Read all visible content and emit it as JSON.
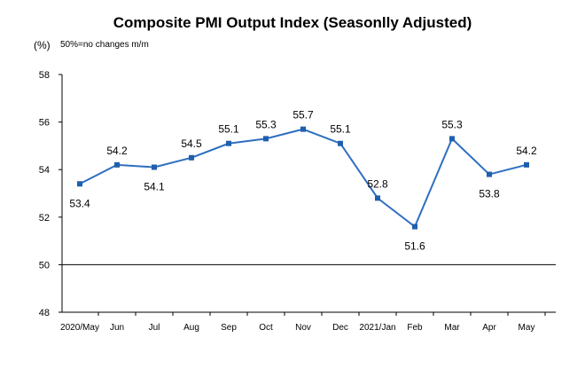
{
  "title": "Composite PMI Output Index (Seasonlly Adjusted)",
  "unit_label": "(%)",
  "note": "50%=no changes  m/m",
  "colors": {
    "line": "#2e6fc0",
    "marker": "#1f5fae",
    "axis": "#000000",
    "gridline": "#000000"
  },
  "chart_data": {
    "type": "line",
    "title": "Composite PMI Output Index (Seasonlly Adjusted)",
    "xlabel": "",
    "ylabel": "(%)",
    "categories": [
      "2020/May",
      "Jun",
      "Jul",
      "Aug",
      "Sep",
      "Oct",
      "Nov",
      "Dec",
      "2021/Jan",
      "Feb",
      "Mar",
      "Apr",
      "May"
    ],
    "series": [
      {
        "values": [
          53.4,
          54.2,
          54.1,
          54.5,
          55.1,
          55.3,
          55.7,
          55.1,
          52.8,
          51.6,
          55.3,
          53.8,
          54.2
        ],
        "labels": [
          "53.4",
          "54.2",
          "54.1",
          "54.5",
          "55.1",
          "55.3",
          "55.7",
          "55.1",
          "52.8",
          "51.6",
          "55.3",
          "53.8",
          "54.2"
        ]
      }
    ],
    "ylim": [
      48,
      58
    ],
    "yticks": [
      48,
      50,
      52,
      54,
      56,
      58
    ],
    "ytick_labels": [
      "48",
      "50",
      "52",
      "54",
      "56",
      "58"
    ],
    "reference_line": 50,
    "grid": false,
    "legend": "none"
  }
}
